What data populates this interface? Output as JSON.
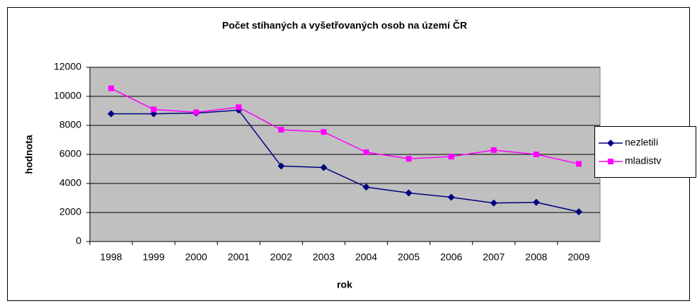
{
  "chart_data": {
    "type": "line",
    "title": "Počet stíhaných a vyšetřovaných osob na území ČR",
    "x_label": "rok",
    "y_label": "hodnota",
    "categories": [
      "1998",
      "1999",
      "2000",
      "2001",
      "2002",
      "2003",
      "2004",
      "2005",
      "2006",
      "2007",
      "2008",
      "2009"
    ],
    "series": [
      {
        "name": "nezletilí",
        "color": "#000080",
        "marker": "diamond",
        "values": [
          8800,
          8800,
          8850,
          9050,
          5200,
          5100,
          3750,
          3350,
          3050,
          2650,
          2700,
          2050
        ]
      },
      {
        "name": "mladistv",
        "color": "#ff00ff",
        "marker": "square",
        "values": [
          10550,
          9100,
          8900,
          9250,
          7700,
          7550,
          6150,
          5700,
          5850,
          6300,
          6000,
          5350
        ]
      }
    ],
    "ylim": [
      0,
      12000
    ],
    "yticks": [
      0,
      2000,
      4000,
      6000,
      8000,
      10000,
      12000
    ],
    "grid": true,
    "legend": "right",
    "plot_background": "#c0c0c0"
  }
}
